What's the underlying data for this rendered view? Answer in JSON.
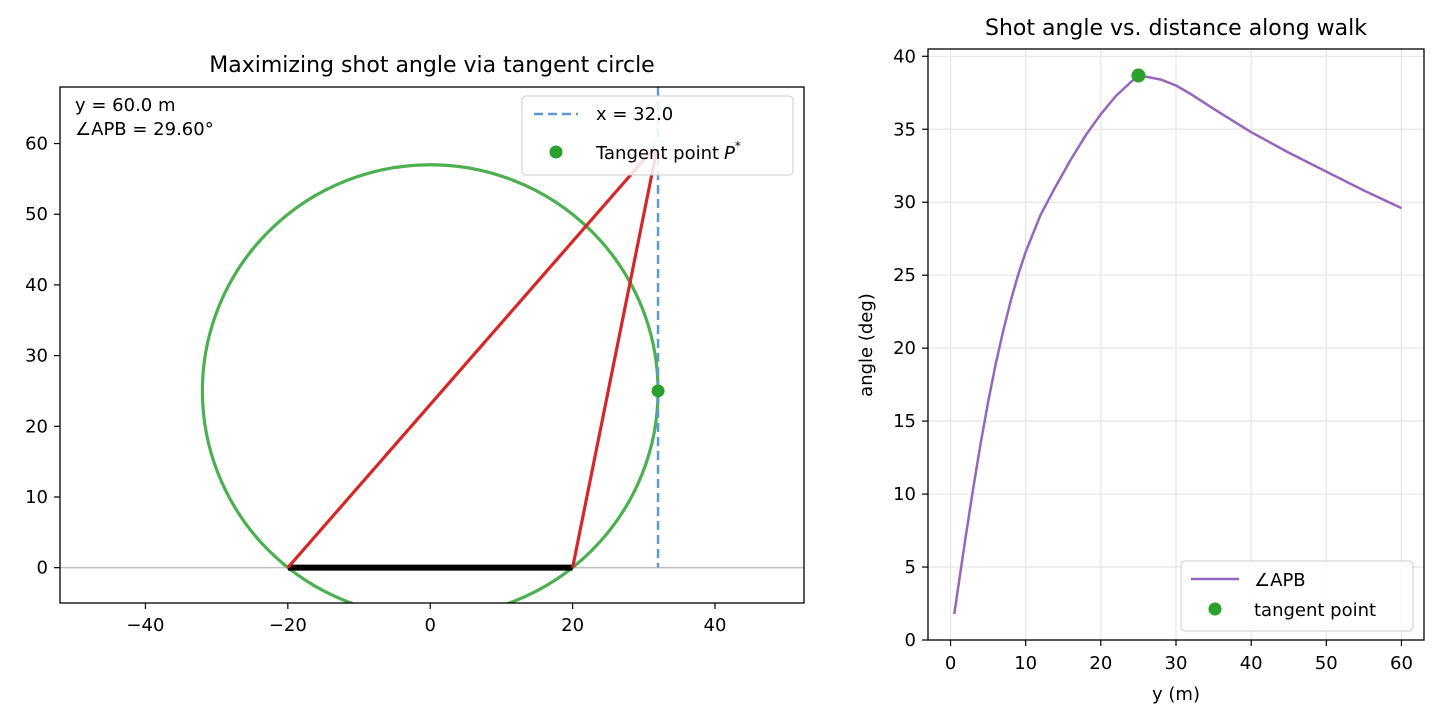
{
  "chart_data": [
    {
      "type": "line",
      "title": "Maximizing shot angle via tangent circle",
      "xlim": [
        -52,
        52.5
      ],
      "ylim": [
        -5,
        68
      ],
      "xticks": [
        -40,
        -20,
        0,
        20,
        40
      ],
      "yticks": [
        0,
        10,
        20,
        30,
        40,
        50,
        60
      ],
      "grid": false,
      "legend_position": "top-right",
      "status_line1": "y =  60.0 m",
      "status_line2": "∠APB = 29.60°",
      "post": {
        "A": [
          -20,
          0
        ],
        "B": [
          20,
          0
        ]
      },
      "walk_x": 32.0,
      "current_point": {
        "x": 32.0,
        "y": 60.0
      },
      "circle": {
        "cx": 0,
        "cy": 25,
        "r": 32
      },
      "tangent_point": {
        "x": 32.0,
        "y": 25.0
      },
      "legend": [
        {
          "label": "x = 32.0",
          "style": "dashed",
          "color": "#5b9bd5"
        },
        {
          "label": "Tangent point",
          "label_math": "P",
          "label_sup": "*",
          "style": "marker",
          "color": "#2ca02c"
        }
      ],
      "colors": {
        "circle": "#4caf50",
        "lines": "#d62728",
        "walk": "#5b9bd5",
        "baseline": "#bfbfbf",
        "post": "#000000",
        "point": "#2ca02c"
      }
    },
    {
      "type": "line",
      "title": "Shot angle vs. distance along walk",
      "xlabel": "y (m)",
      "ylabel": "angle (deg)",
      "xlim": [
        -3,
        63
      ],
      "ylim": [
        0,
        40.5
      ],
      "xticks": [
        0,
        10,
        20,
        30,
        40,
        50,
        60
      ],
      "yticks": [
        0,
        5,
        10,
        15,
        20,
        25,
        30,
        35,
        40
      ],
      "grid": true,
      "legend_position": "bottom-right",
      "series": [
        {
          "name": "∠APB",
          "color": "#9467bd",
          "x": [
            0.5,
            1,
            2,
            3,
            4,
            5,
            6,
            7,
            8,
            9,
            10,
            12,
            14,
            16,
            18,
            20,
            22,
            24,
            25,
            26,
            28,
            30,
            32,
            35,
            40,
            45,
            50,
            55,
            60
          ],
          "y": [
            1.79,
            3.57,
            7.04,
            10.35,
            13.45,
            16.3,
            18.88,
            21.19,
            23.24,
            25.03,
            26.6,
            29.15,
            31.1,
            32.92,
            34.59,
            36.03,
            37.28,
            38.24,
            38.68,
            38.6,
            38.4,
            38.0,
            37.4,
            36.4,
            34.8,
            33.4,
            32.1,
            30.8,
            29.6
          ]
        }
      ],
      "tangent_point": {
        "name": "tangent point",
        "x": 25.0,
        "y": 38.68,
        "color": "#2ca02c"
      },
      "legend": [
        {
          "label": "∠APB",
          "style": "line",
          "color": "#9467bd"
        },
        {
          "label": "tangent point",
          "style": "marker",
          "color": "#2ca02c"
        }
      ]
    }
  ]
}
